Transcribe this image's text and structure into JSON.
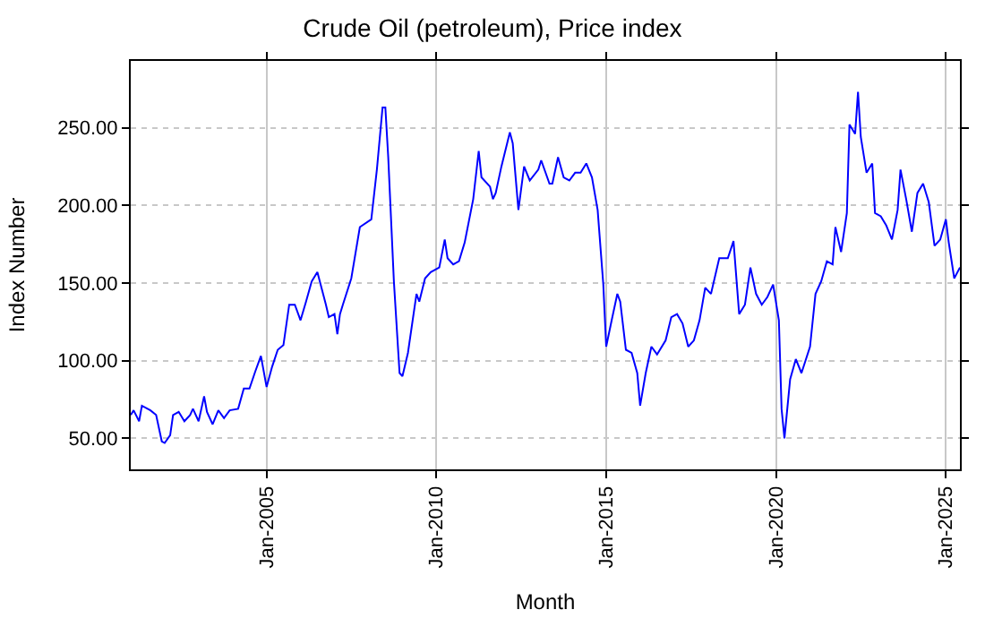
{
  "chart_data": {
    "type": "line",
    "title": "Crude Oil (petroleum), Price index",
    "xlabel": "Month",
    "ylabel": "Index Number",
    "x": [
      "2001-01",
      "2001-02",
      "2001-04",
      "2001-05",
      "2001-08",
      "2001-10",
      "2001-12",
      "2002-01",
      "2002-03",
      "2002-04",
      "2002-06",
      "2002-08",
      "2002-10",
      "2002-11",
      "2003-01",
      "2003-03",
      "2003-04",
      "2003-06",
      "2003-08",
      "2003-10",
      "2003-12",
      "2004-03",
      "2004-05",
      "2004-07",
      "2004-09",
      "2004-11",
      "2005-01",
      "2005-03",
      "2005-05",
      "2005-07",
      "2005-09",
      "2005-11",
      "2006-01",
      "2006-03",
      "2006-05",
      "2006-07",
      "2006-10",
      "2006-11",
      "2007-01",
      "2007-02",
      "2007-03",
      "2007-04",
      "2007-07",
      "2007-10",
      "2008-02",
      "2008-04",
      "2008-06",
      "2008-07",
      "2008-08",
      "2008-10",
      "2008-12",
      "2009-01",
      "2009-03",
      "2009-06",
      "2009-07",
      "2009-09",
      "2009-11",
      "2010-02",
      "2010-04",
      "2010-05",
      "2010-07",
      "2010-09",
      "2010-11",
      "2011-02",
      "2011-04",
      "2011-05",
      "2011-08",
      "2011-09",
      "2011-10",
      "2011-12",
      "2012-03",
      "2012-04",
      "2012-06",
      "2012-08",
      "2012-10",
      "2013-01",
      "2013-02",
      "2013-05",
      "2013-06",
      "2013-08",
      "2013-10",
      "2013-12",
      "2014-02",
      "2014-04",
      "2014-06",
      "2014-08",
      "2014-10",
      "2014-12",
      "2015-01",
      "2015-03",
      "2015-05",
      "2015-06",
      "2015-08",
      "2015-10",
      "2015-12",
      "2016-01",
      "2016-03",
      "2016-05",
      "2016-07",
      "2016-10",
      "2016-12",
      "2017-02",
      "2017-04",
      "2017-06",
      "2017-08",
      "2017-10",
      "2017-12",
      "2018-02",
      "2018-05",
      "2018-08",
      "2018-10",
      "2018-12",
      "2019-02",
      "2019-04",
      "2019-06",
      "2019-08",
      "2019-10",
      "2019-12",
      "2020-02",
      "2020-03",
      "2020-04",
      "2020-06",
      "2020-08",
      "2020-10",
      "2021-01",
      "2021-03",
      "2021-05",
      "2021-07",
      "2021-09",
      "2021-10",
      "2021-12",
      "2022-02",
      "2022-03",
      "2022-05",
      "2022-06",
      "2022-07",
      "2022-09",
      "2022-11",
      "2022-12",
      "2023-02",
      "2023-04",
      "2023-06",
      "2023-08",
      "2023-09",
      "2023-11",
      "2024-01",
      "2024-03",
      "2024-05",
      "2024-07",
      "2024-09",
      "2024-11",
      "2025-01",
      "2025-02",
      "2025-04",
      "2025-06"
    ],
    "series": [
      {
        "color": "#0000ff",
        "values": [
          65,
          68,
          61,
          71,
          68,
          65,
          48,
          47,
          52,
          65,
          67,
          61,
          65,
          69,
          61,
          77,
          67,
          59,
          68,
          63,
          68,
          69,
          82,
          82,
          93,
          103,
          83,
          96,
          107,
          110,
          136,
          136,
          126,
          138,
          151,
          157,
          136,
          128,
          130,
          117,
          130,
          136,
          153,
          186,
          191,
          223,
          263,
          263,
          231,
          151,
          92,
          90,
          105,
          143,
          138,
          153,
          157,
          160,
          178,
          166,
          162,
          164,
          176,
          204,
          235,
          218,
          212,
          204,
          208,
          225,
          247,
          240,
          197,
          225,
          216,
          223,
          229,
          214,
          214,
          231,
          218,
          216,
          221,
          221,
          227,
          218,
          197,
          149,
          109,
          126,
          143,
          138,
          107,
          105,
          92,
          71,
          92,
          109,
          104,
          113,
          128,
          130,
          124,
          109,
          113,
          126,
          147,
          143,
          166,
          166,
          177,
          130,
          136,
          160,
          143,
          136,
          141,
          149,
          126,
          69,
          50,
          88,
          101,
          92,
          109,
          143,
          151,
          164,
          162,
          186,
          170,
          195,
          252,
          246,
          273,
          244,
          221,
          227,
          195,
          193,
          187,
          178,
          197,
          223,
          204,
          183,
          208,
          214,
          202,
          174,
          178,
          191,
          176,
          153,
          160
        ]
      }
    ],
    "xlim": [
      "2001-01",
      "2025-06"
    ],
    "xticks": [
      {
        "value": "2005-01",
        "label": "Jan-2005"
      },
      {
        "value": "2010-01",
        "label": "Jan-2010"
      },
      {
        "value": "2015-01",
        "label": "Jan-2015"
      },
      {
        "value": "2020-01",
        "label": "Jan-2020"
      },
      {
        "value": "2025-01",
        "label": "Jan-2025"
      }
    ],
    "ylim": [
      30,
      293
    ],
    "yticks": [
      {
        "value": 50,
        "label": "50.00"
      },
      {
        "value": 100,
        "label": "100.00"
      },
      {
        "value": 150,
        "label": "150.00"
      },
      {
        "value": 200,
        "label": "200.00"
      },
      {
        "value": 250,
        "label": "250.00"
      }
    ],
    "grid": true,
    "marker": "none",
    "line_style": "solid"
  }
}
